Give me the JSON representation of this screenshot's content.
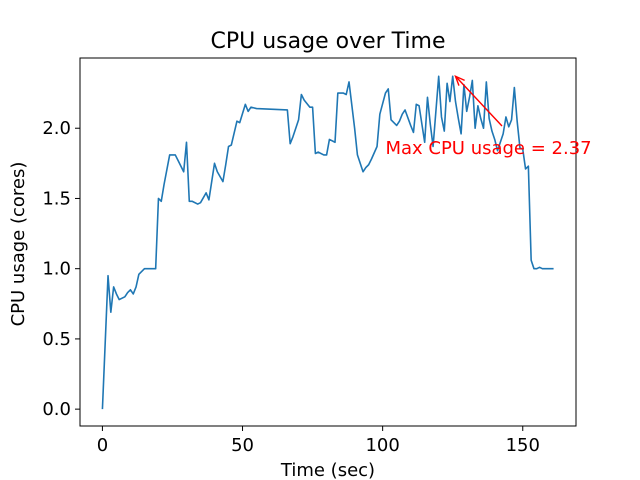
{
  "chart_data": {
    "type": "line",
    "title": "CPU usage over Time",
    "xlabel": "Time (sec)",
    "ylabel": "CPU usage (cores)",
    "xlim": [
      -8,
      169
    ],
    "ylim": [
      -0.12,
      2.5
    ],
    "xticks": [
      0,
      50,
      100,
      150
    ],
    "yticks": [
      0.0,
      0.5,
      1.0,
      1.5,
      2.0
    ],
    "ytick_labels": [
      "0.0",
      "0.5",
      "1.0",
      "1.5",
      "2.0"
    ],
    "grid": false,
    "series": [
      {
        "color": "#1f77b4",
        "x": [
          0,
          2,
          3,
          4,
          5,
          6,
          8,
          9,
          10,
          11,
          12,
          13,
          15,
          17,
          18,
          19,
          20,
          21,
          22,
          24,
          26,
          27,
          29,
          30,
          31,
          32,
          34,
          35,
          37,
          38,
          40,
          41,
          43,
          44,
          45,
          46,
          48,
          49,
          51,
          52,
          53,
          55,
          66,
          67,
          68,
          70,
          71,
          72,
          74,
          75,
          76,
          77,
          79,
          80,
          81,
          83,
          84,
          86,
          87,
          88,
          90,
          91,
          93,
          94,
          95,
          96,
          98,
          99,
          101,
          102,
          103,
          105,
          106,
          107,
          108,
          110,
          111,
          112,
          113,
          115,
          116,
          117,
          118,
          120,
          121,
          122,
          123,
          124,
          125,
          126,
          127,
          128,
          129,
          130,
          131,
          132,
          133,
          134,
          135,
          136,
          137,
          138,
          139,
          140,
          141,
          142,
          143,
          144,
          145,
          146,
          147,
          148,
          149,
          150,
          151,
          152,
          153,
          154,
          155,
          156,
          157,
          158,
          159,
          160,
          161
        ],
        "y": [
          0.0,
          0.95,
          0.69,
          0.87,
          0.82,
          0.78,
          0.8,
          0.83,
          0.85,
          0.82,
          0.87,
          0.96,
          1.0,
          1.0,
          1.0,
          1.0,
          1.5,
          1.48,
          1.6,
          1.81,
          1.81,
          1.77,
          1.69,
          1.9,
          1.48,
          1.48,
          1.46,
          1.47,
          1.54,
          1.49,
          1.75,
          1.69,
          1.62,
          1.74,
          1.87,
          1.88,
          2.05,
          2.04,
          2.17,
          2.12,
          2.15,
          2.14,
          2.13,
          1.89,
          1.94,
          2.06,
          2.24,
          2.2,
          2.15,
          2.15,
          1.82,
          1.83,
          1.81,
          1.81,
          1.92,
          1.9,
          2.25,
          2.25,
          2.24,
          2.33,
          2.0,
          1.81,
          1.69,
          1.72,
          1.74,
          1.78,
          1.87,
          2.1,
          2.25,
          2.28,
          2.06,
          2.02,
          2.05,
          2.1,
          2.13,
          2.02,
          1.97,
          2.17,
          2.16,
          1.9,
          2.22,
          2.03,
          1.87,
          2.37,
          2.08,
          1.98,
          2.32,
          2.19,
          2.37,
          2.19,
          2.07,
          1.96,
          2.31,
          2.12,
          2.22,
          2.34,
          2.0,
          2.16,
          2.07,
          2.0,
          2.33,
          2.07,
          1.98,
          1.92,
          1.84,
          1.9,
          1.96,
          2.08,
          2.01,
          2.06,
          2.29,
          2.05,
          1.86,
          1.85,
          1.71,
          1.73,
          1.06,
          1.0,
          1.0,
          1.01,
          1.0,
          1.0,
          1.0,
          1.0,
          1.0
        ]
      }
    ],
    "annotation": {
      "text": "Max CPU usage = 2.37",
      "color": "#ff0000",
      "xy": [
        126,
        2.37
      ],
      "xytext": [
        101,
        1.86
      ]
    }
  }
}
